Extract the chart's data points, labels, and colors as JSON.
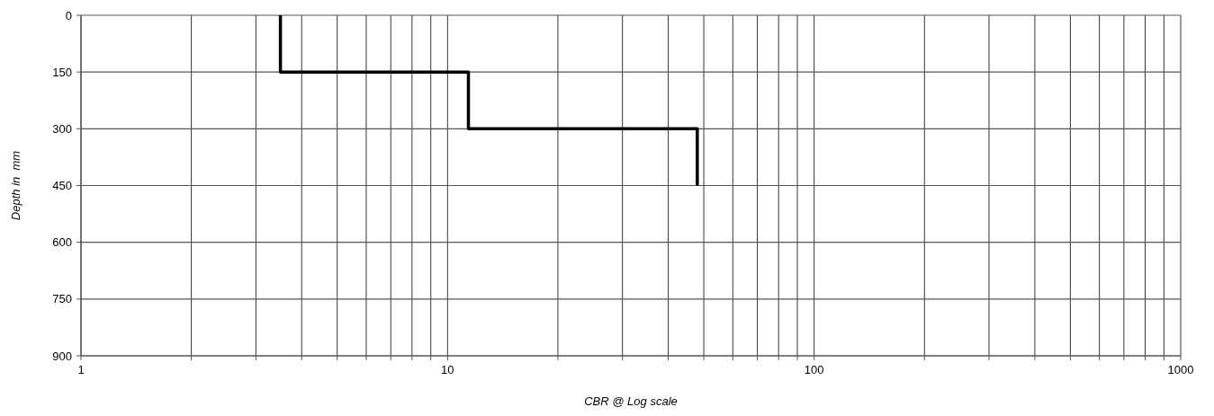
{
  "chart_data": {
    "type": "line",
    "xlabel": "CBR @ Log scale",
    "ylabel": "Depth in  mm",
    "series": [
      {
        "color": "#000000",
        "x": [
          3.5,
          3.5,
          11.4,
          11.4,
          48,
          48
        ],
        "values": [
          0,
          150,
          150,
          300,
          300,
          450
        ]
      }
    ],
    "log": "x",
    "xlim": [
      1,
      1000
    ],
    "xticks": [
      1,
      {
        "value": 2,
        "label": null
      },
      {
        "value": 3,
        "label": null
      },
      {
        "value": 4,
        "label": null
      },
      {
        "value": 5,
        "label": null
      },
      {
        "value": 6,
        "label": null
      },
      {
        "value": 7,
        "label": null
      },
      {
        "value": 8,
        "label": null
      },
      {
        "value": 9,
        "label": null
      },
      10,
      {
        "value": 20,
        "label": null
      },
      {
        "value": 30,
        "label": null
      },
      {
        "value": 40,
        "label": null
      },
      {
        "value": 50,
        "label": null
      },
      {
        "value": 60,
        "label": null
      },
      {
        "value": 70,
        "label": null
      },
      {
        "value": 80,
        "label": null
      },
      {
        "value": 90,
        "label": null
      },
      100,
      {
        "value": 200,
        "label": null
      },
      {
        "value": 300,
        "label": null
      },
      {
        "value": 400,
        "label": null
      },
      {
        "value": 500,
        "label": null
      },
      {
        "value": 600,
        "label": null
      },
      {
        "value": 700,
        "label": null
      },
      {
        "value": 800,
        "label": null
      },
      {
        "value": 900,
        "label": null
      },
      1000
    ],
    "ylim": [
      900,
      0
    ],
    "yticks": [
      0,
      150,
      300,
      450,
      600,
      750,
      900
    ],
    "grid": true,
    "line_style": "solid"
  }
}
